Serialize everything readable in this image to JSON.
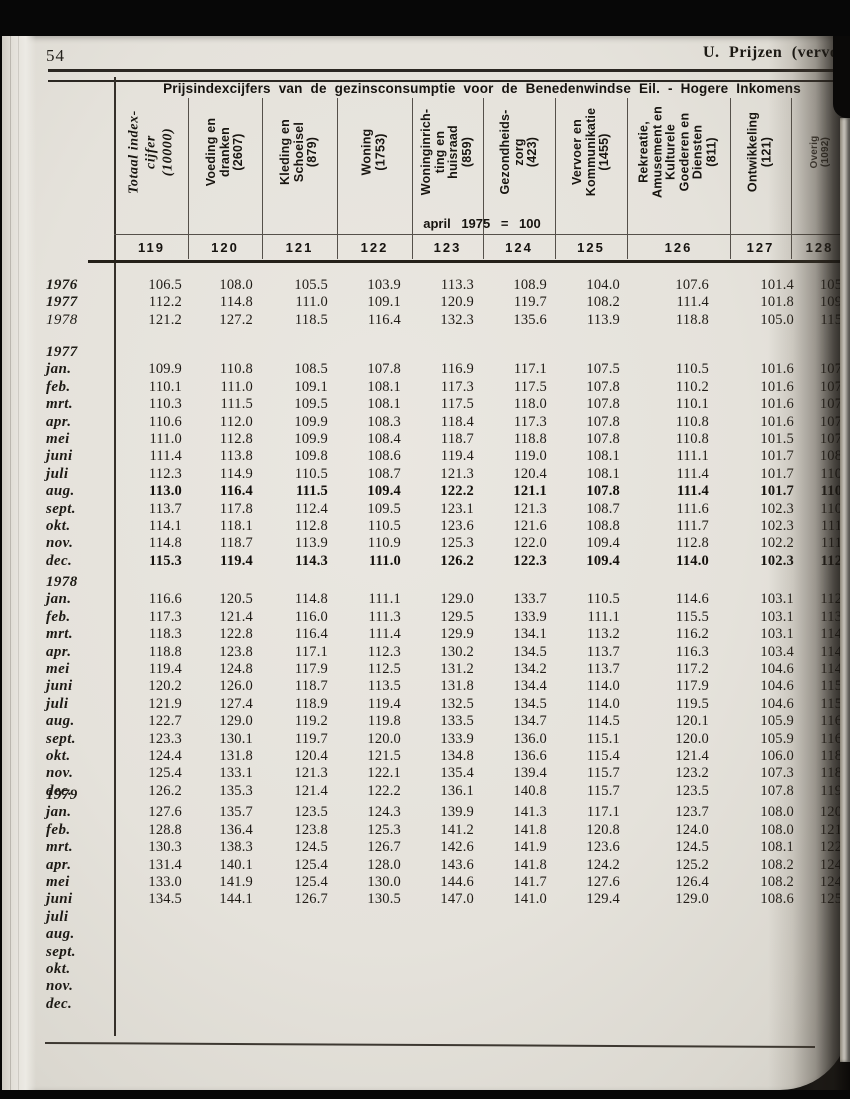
{
  "page": {
    "number": "54",
    "section_header": "U. Prijzen (vervolg"
  },
  "table": {
    "title": "Prijsindexcijfers van de gezinsconsumptie voor de Benedenwindse Eil. - Hogere Inkomens",
    "base_note": "april 1975 = 100",
    "columns": [
      {
        "no": "119",
        "label": "Totaal index-\ncijfer\n(10000)"
      },
      {
        "no": "120",
        "label": "Voeding en\ndranken\n(2607)"
      },
      {
        "no": "121",
        "label": "Kleding en\nSchoeisel\n(879)"
      },
      {
        "no": "122",
        "label": "Woning\n(1753)"
      },
      {
        "no": "123",
        "label": "Woninginrich-\nting en\nhuisraad\n(859)"
      },
      {
        "no": "124",
        "label": "Gezondheids-\nzorg\n(423)"
      },
      {
        "no": "125",
        "label": "Vervoer en\nKommunikatie\n(1455)"
      },
      {
        "no": "126",
        "label": "Rekreatie,\nAmusement en\nKulturele\nGoederen en\nDiensten\n(811)"
      },
      {
        "no": "127",
        "label": "Ontwikkeling\n(121)"
      },
      {
        "no": "128",
        "label": "Overig\n(1092)"
      }
    ],
    "blocks": [
      {
        "label": "",
        "rows": [
          {
            "label": "1976",
            "lw": 700,
            "values": [
              "106.5",
              "108.0",
              "105.5",
              "103.9",
              "113.3",
              "108.9",
              "104.0",
              "107.6",
              "101.4",
              "105."
            ]
          },
          {
            "label": "1977",
            "lw": 700,
            "values": [
              "112.2",
              "114.8",
              "111.0",
              "109.1",
              "120.9",
              "119.7",
              "108.2",
              "111.4",
              "101.8",
              "109."
            ]
          },
          {
            "label": "1978",
            "lw": 400,
            "values": [
              "121.2",
              "127.2",
              "118.5",
              "116.4",
              "132.3",
              "135.6",
              "113.9",
              "118.8",
              "105.0",
              "115."
            ]
          }
        ]
      },
      {
        "label": "1977",
        "rows": [
          {
            "label": "jan.",
            "values": [
              "109.9",
              "110.8",
              "108.5",
              "107.8",
              "116.9",
              "117.1",
              "107.5",
              "110.5",
              "101.6",
              "107."
            ]
          },
          {
            "label": "feb.",
            "values": [
              "110.1",
              "111.0",
              "109.1",
              "108.1",
              "117.3",
              "117.5",
              "107.8",
              "110.2",
              "101.6",
              "107."
            ]
          },
          {
            "label": "mrt.",
            "values": [
              "110.3",
              "111.5",
              "109.5",
              "108.1",
              "117.5",
              "118.0",
              "107.8",
              "110.1",
              "101.6",
              "107."
            ]
          },
          {
            "label": "apr.",
            "values": [
              "110.6",
              "112.0",
              "109.9",
              "108.3",
              "118.4",
              "117.3",
              "107.8",
              "110.8",
              "101.6",
              "107."
            ]
          },
          {
            "label": "mei",
            "values": [
              "111.0",
              "112.8",
              "109.9",
              "108.4",
              "118.7",
              "118.8",
              "107.8",
              "110.8",
              "101.5",
              "107."
            ]
          },
          {
            "label": "juni",
            "values": [
              "111.4",
              "113.8",
              "109.8",
              "108.6",
              "119.4",
              "119.0",
              "108.1",
              "111.1",
              "101.7",
              "108."
            ]
          },
          {
            "label": "juli",
            "values": [
              "112.3",
              "114.9",
              "110.5",
              "108.7",
              "121.3",
              "120.4",
              "108.1",
              "111.4",
              "101.7",
              "110."
            ]
          },
          {
            "label": "aug.",
            "heavy": true,
            "values": [
              "113.0",
              "116.4",
              "111.5",
              "109.4",
              "122.2",
              "121.1",
              "107.8",
              "111.4",
              "101.7",
              "110."
            ]
          },
          {
            "label": "sept.",
            "values": [
              "113.7",
              "117.8",
              "112.4",
              "109.5",
              "123.1",
              "121.3",
              "108.7",
              "111.6",
              "102.3",
              "110."
            ]
          },
          {
            "label": "okt.",
            "values": [
              "114.1",
              "118.1",
              "112.8",
              "110.5",
              "123.6",
              "121.6",
              "108.8",
              "111.7",
              "102.3",
              "111."
            ]
          },
          {
            "label": "nov.",
            "values": [
              "114.8",
              "118.7",
              "113.9",
              "110.9",
              "125.3",
              "122.0",
              "109.4",
              "112.8",
              "102.2",
              "111."
            ]
          },
          {
            "label": "dec.",
            "heavy": true,
            "values": [
              "115.3",
              "119.4",
              "114.3",
              "111.0",
              "126.2",
              "122.3",
              "109.4",
              "114.0",
              "102.3",
              "112."
            ]
          }
        ]
      },
      {
        "label": "1978",
        "rows": [
          {
            "label": "jan.",
            "values": [
              "116.6",
              "120.5",
              "114.8",
              "111.1",
              "129.0",
              "133.7",
              "110.5",
              "114.6",
              "103.1",
              "112."
            ]
          },
          {
            "label": "feb.",
            "values": [
              "117.3",
              "121.4",
              "116.0",
              "111.3",
              "129.5",
              "133.9",
              "111.1",
              "115.5",
              "103.1",
              "113."
            ]
          },
          {
            "label": "mrt.",
            "values": [
              "118.3",
              "122.8",
              "116.4",
              "111.4",
              "129.9",
              "134.1",
              "113.2",
              "116.2",
              "103.1",
              "114."
            ]
          },
          {
            "label": "apr.",
            "values": [
              "118.8",
              "123.8",
              "117.1",
              "112.3",
              "130.2",
              "134.5",
              "113.7",
              "116.3",
              "103.4",
              "114."
            ]
          },
          {
            "label": "mei",
            "values": [
              "119.4",
              "124.8",
              "117.9",
              "112.5",
              "131.2",
              "134.2",
              "113.7",
              "117.2",
              "104.6",
              "114."
            ]
          },
          {
            "label": "juni",
            "values": [
              "120.2",
              "126.0",
              "118.7",
              "113.5",
              "131.8",
              "134.4",
              "114.0",
              "117.9",
              "104.6",
              "115."
            ]
          },
          {
            "label": "juli",
            "values": [
              "121.9",
              "127.4",
              "118.9",
              "119.4",
              "132.5",
              "134.5",
              "114.0",
              "119.5",
              "104.6",
              "115."
            ]
          },
          {
            "label": "aug.",
            "values": [
              "122.7",
              "129.0",
              "119.2",
              "119.8",
              "133.5",
              "134.7",
              "114.5",
              "120.1",
              "105.9",
              "116."
            ]
          },
          {
            "label": "sept.",
            "values": [
              "123.3",
              "130.1",
              "119.7",
              "120.0",
              "133.9",
              "136.0",
              "115.1",
              "120.0",
              "105.9",
              "116."
            ]
          },
          {
            "label": "okt.",
            "values": [
              "124.4",
              "131.8",
              "120.4",
              "121.5",
              "134.8",
              "136.6",
              "115.4",
              "121.4",
              "106.0",
              "118."
            ]
          },
          {
            "label": "nov.",
            "values": [
              "125.4",
              "133.1",
              "121.3",
              "122.1",
              "135.4",
              "139.4",
              "115.7",
              "123.2",
              "107.3",
              "118."
            ]
          },
          {
            "label": "dec.",
            "values": [
              "126.2",
              "135.3",
              "121.4",
              "122.2",
              "136.1",
              "140.8",
              "115.7",
              "123.5",
              "107.8",
              "119."
            ]
          }
        ]
      },
      {
        "label": "1979",
        "rows": [
          {
            "label": "jan.",
            "values": [
              "127.6",
              "135.7",
              "123.5",
              "124.3",
              "139.9",
              "141.3",
              "117.1",
              "123.7",
              "108.0",
              "120."
            ]
          },
          {
            "label": "feb.",
            "values": [
              "128.8",
              "136.4",
              "123.8",
              "125.3",
              "141.2",
              "141.8",
              "120.8",
              "124.0",
              "108.0",
              "121."
            ]
          },
          {
            "label": "mrt.",
            "values": [
              "130.3",
              "138.3",
              "124.5",
              "126.7",
              "142.6",
              "141.9",
              "123.6",
              "124.5",
              "108.1",
              "122."
            ]
          },
          {
            "label": "apr.",
            "values": [
              "131.4",
              "140.1",
              "125.4",
              "128.0",
              "143.6",
              "141.8",
              "124.2",
              "125.2",
              "108.2",
              "124."
            ]
          },
          {
            "label": "mei",
            "values": [
              "133.0",
              "141.9",
              "125.4",
              "130.0",
              "144.6",
              "141.7",
              "127.6",
              "126.4",
              "108.2",
              "124."
            ]
          },
          {
            "label": "juni",
            "values": [
              "134.5",
              "144.1",
              "126.7",
              "130.5",
              "147.0",
              "141.0",
              "129.4",
              "129.0",
              "108.6",
              "125."
            ]
          },
          {
            "label": "juli",
            "values": []
          },
          {
            "label": "aug.",
            "values": []
          },
          {
            "label": "sept.",
            "values": []
          },
          {
            "label": "okt.",
            "values": []
          },
          {
            "label": "nov.",
            "values": []
          },
          {
            "label": "dec.",
            "values": []
          }
        ]
      }
    ]
  }
}
